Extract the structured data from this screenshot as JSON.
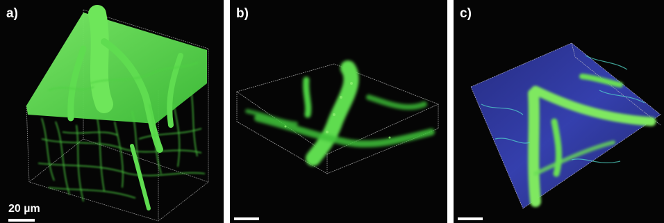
{
  "panels": [
    {
      "label": "a)",
      "scale_bar_text": "20 µm"
    },
    {
      "label": "b)"
    },
    {
      "label": "c)"
    }
  ],
  "colors": {
    "vessel": "#55e04a",
    "vessel_bright": "#9cff6a",
    "background": "#050505",
    "stain_blue": "#2f3bb0",
    "box_edge": "#9a9a9a"
  }
}
